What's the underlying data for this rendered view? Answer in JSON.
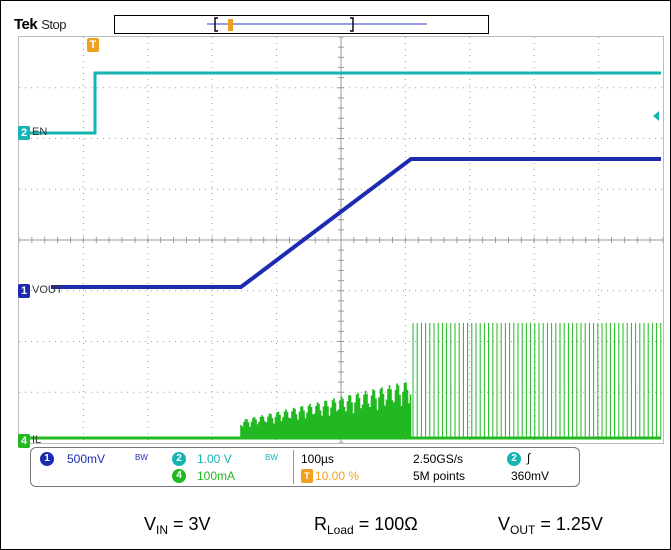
{
  "header": {
    "brand": "Tek",
    "mode": "Stop"
  },
  "markers": {
    "trigger": "T",
    "ch2": "2",
    "ch1": "1",
    "ch4": "4"
  },
  "channel_labels": {
    "ch2": "EN",
    "ch1": "VOUT",
    "ch4": "IL"
  },
  "status": {
    "ch1_num": "1",
    "ch1_scale": "500mV",
    "ch1_bw": "BW",
    "ch2_num": "2",
    "ch2_scale": "1.00 V",
    "ch2_bw": "BW",
    "ch4_num": "4",
    "ch4_scale": "100mA",
    "timebase": "100µs",
    "trigger_pos_icon": "T",
    "trigger_pos": "10.00 %",
    "sample_rate": "2.50GS/s",
    "record_length": "5M points",
    "trig_ch_num": "2",
    "trig_slope": "∫",
    "trig_level": "360mV"
  },
  "captions": {
    "vin_v": "V",
    "vin_sub": "IN",
    "vin_val": " = 3V",
    "rload_r": "R",
    "rload_sub": "Load",
    "rload_val": " = 100Ω",
    "vout_v": "V",
    "vout_sub": "OUT",
    "vout_val": " = 1.25V"
  },
  "colors": {
    "ch1": "#1c2bb0",
    "ch2": "#16b3b3",
    "ch4": "#22b822",
    "trigger": "#f0a020",
    "grid": "#9a9a9a"
  }
}
